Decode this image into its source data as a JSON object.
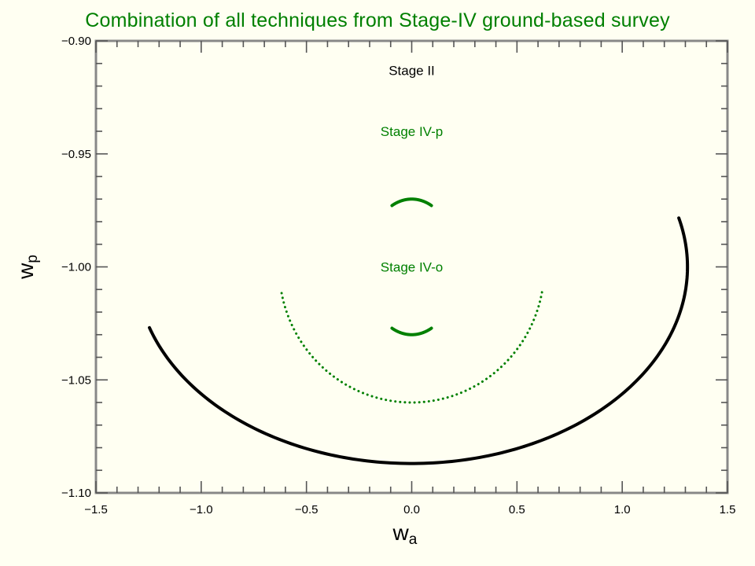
{
  "title": "Combination of all techniques from Stage-IV ground-based survey",
  "colors": {
    "title": "#008000",
    "background": "#fffff2",
    "stage_ii": "#000000",
    "stage_iv": "#008000"
  },
  "chart_data": {
    "type": "line",
    "title": "Combination of all techniques from Stage-IV ground-based survey",
    "xlabel": {
      "main": "w",
      "sub": "a"
    },
    "ylabel": {
      "main": "w",
      "sub": "p"
    },
    "xlim": [
      -1.5,
      1.5
    ],
    "ylim": [
      -1.1,
      -0.9
    ],
    "xticks": [
      -1.5,
      -1.0,
      -0.5,
      0.0,
      0.5,
      1.0,
      1.5
    ],
    "xtick_labels": [
      "−1.5",
      "−1.0",
      "−0.5",
      "0.0",
      "0.5",
      "1.0",
      "1.5"
    ],
    "yticks": [
      -0.9,
      -0.95,
      -1.0,
      -1.05,
      -1.1
    ],
    "ytick_labels": [
      "−0.90",
      "−0.95",
      "−1.00",
      "−1.05",
      "−1.10"
    ],
    "grid": false,
    "series": [
      {
        "name": "Stage II",
        "shape": "ellipse",
        "center": [
          0.0,
          -1.0
        ],
        "semi_axes": [
          1.31,
          0.087
        ],
        "color": "#000000",
        "style": "solid",
        "label_gap": [
          0.21,
          0.7
        ]
      },
      {
        "name": "Stage IV-p",
        "shape": "ellipse",
        "center": [
          0.0,
          -1.0
        ],
        "semi_axes": [
          0.63,
          0.06
        ],
        "color": "#008000",
        "style": "dotted",
        "label_gap": [
          0.28,
          0.72
        ]
      },
      {
        "name": "Stage IV-o",
        "shape": "ellipse",
        "center": [
          0.0,
          -1.0
        ],
        "semi_axes": [
          0.22,
          0.03
        ],
        "color": "#008000",
        "style": "solid",
        "label_gap": [
          0.43,
          0.57,
          0.93,
          0.07
        ]
      }
    ]
  }
}
